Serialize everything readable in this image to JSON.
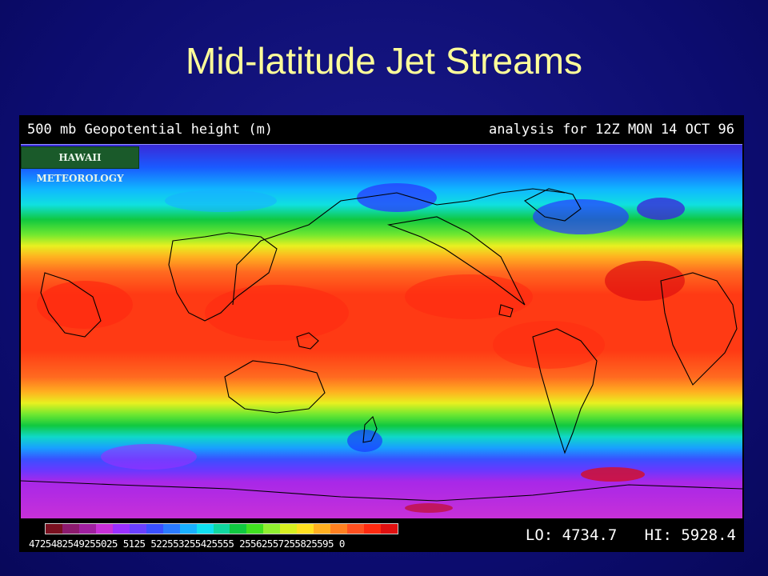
{
  "slide": {
    "title": "Mid-latitude Jet Streams"
  },
  "map": {
    "header_left": "500 mb Geopotential height (m)",
    "header_right": "analysis for 12Z MON 14 OCT 96",
    "badge": "HAWAII METEOROLOGY",
    "lo_label": "LO: 4734.7",
    "hi_label": "HI: 5928.4",
    "colorbar_labels": "4725482549255025 5125 522553255425555 25562557255825595 0",
    "colorbar_values": [
      4725,
      4825,
      4925,
      5025,
      5125,
      5225,
      5325,
      5425,
      5525,
      5625,
      5725,
      5825,
      5925,
      5950
    ],
    "colorbar_colors": [
      "#7a1020",
      "#8c1a6e",
      "#a020a0",
      "#c830d8",
      "#9a30ff",
      "#6a40ff",
      "#3a50ff",
      "#2a7aff",
      "#18b0ff",
      "#10e0f0",
      "#10d8a0",
      "#10c840",
      "#40e020",
      "#90f030",
      "#d8f020",
      "#ffe020",
      "#ffb020",
      "#ff8020",
      "#ff5020",
      "#ff2a10",
      "#e01010"
    ]
  }
}
